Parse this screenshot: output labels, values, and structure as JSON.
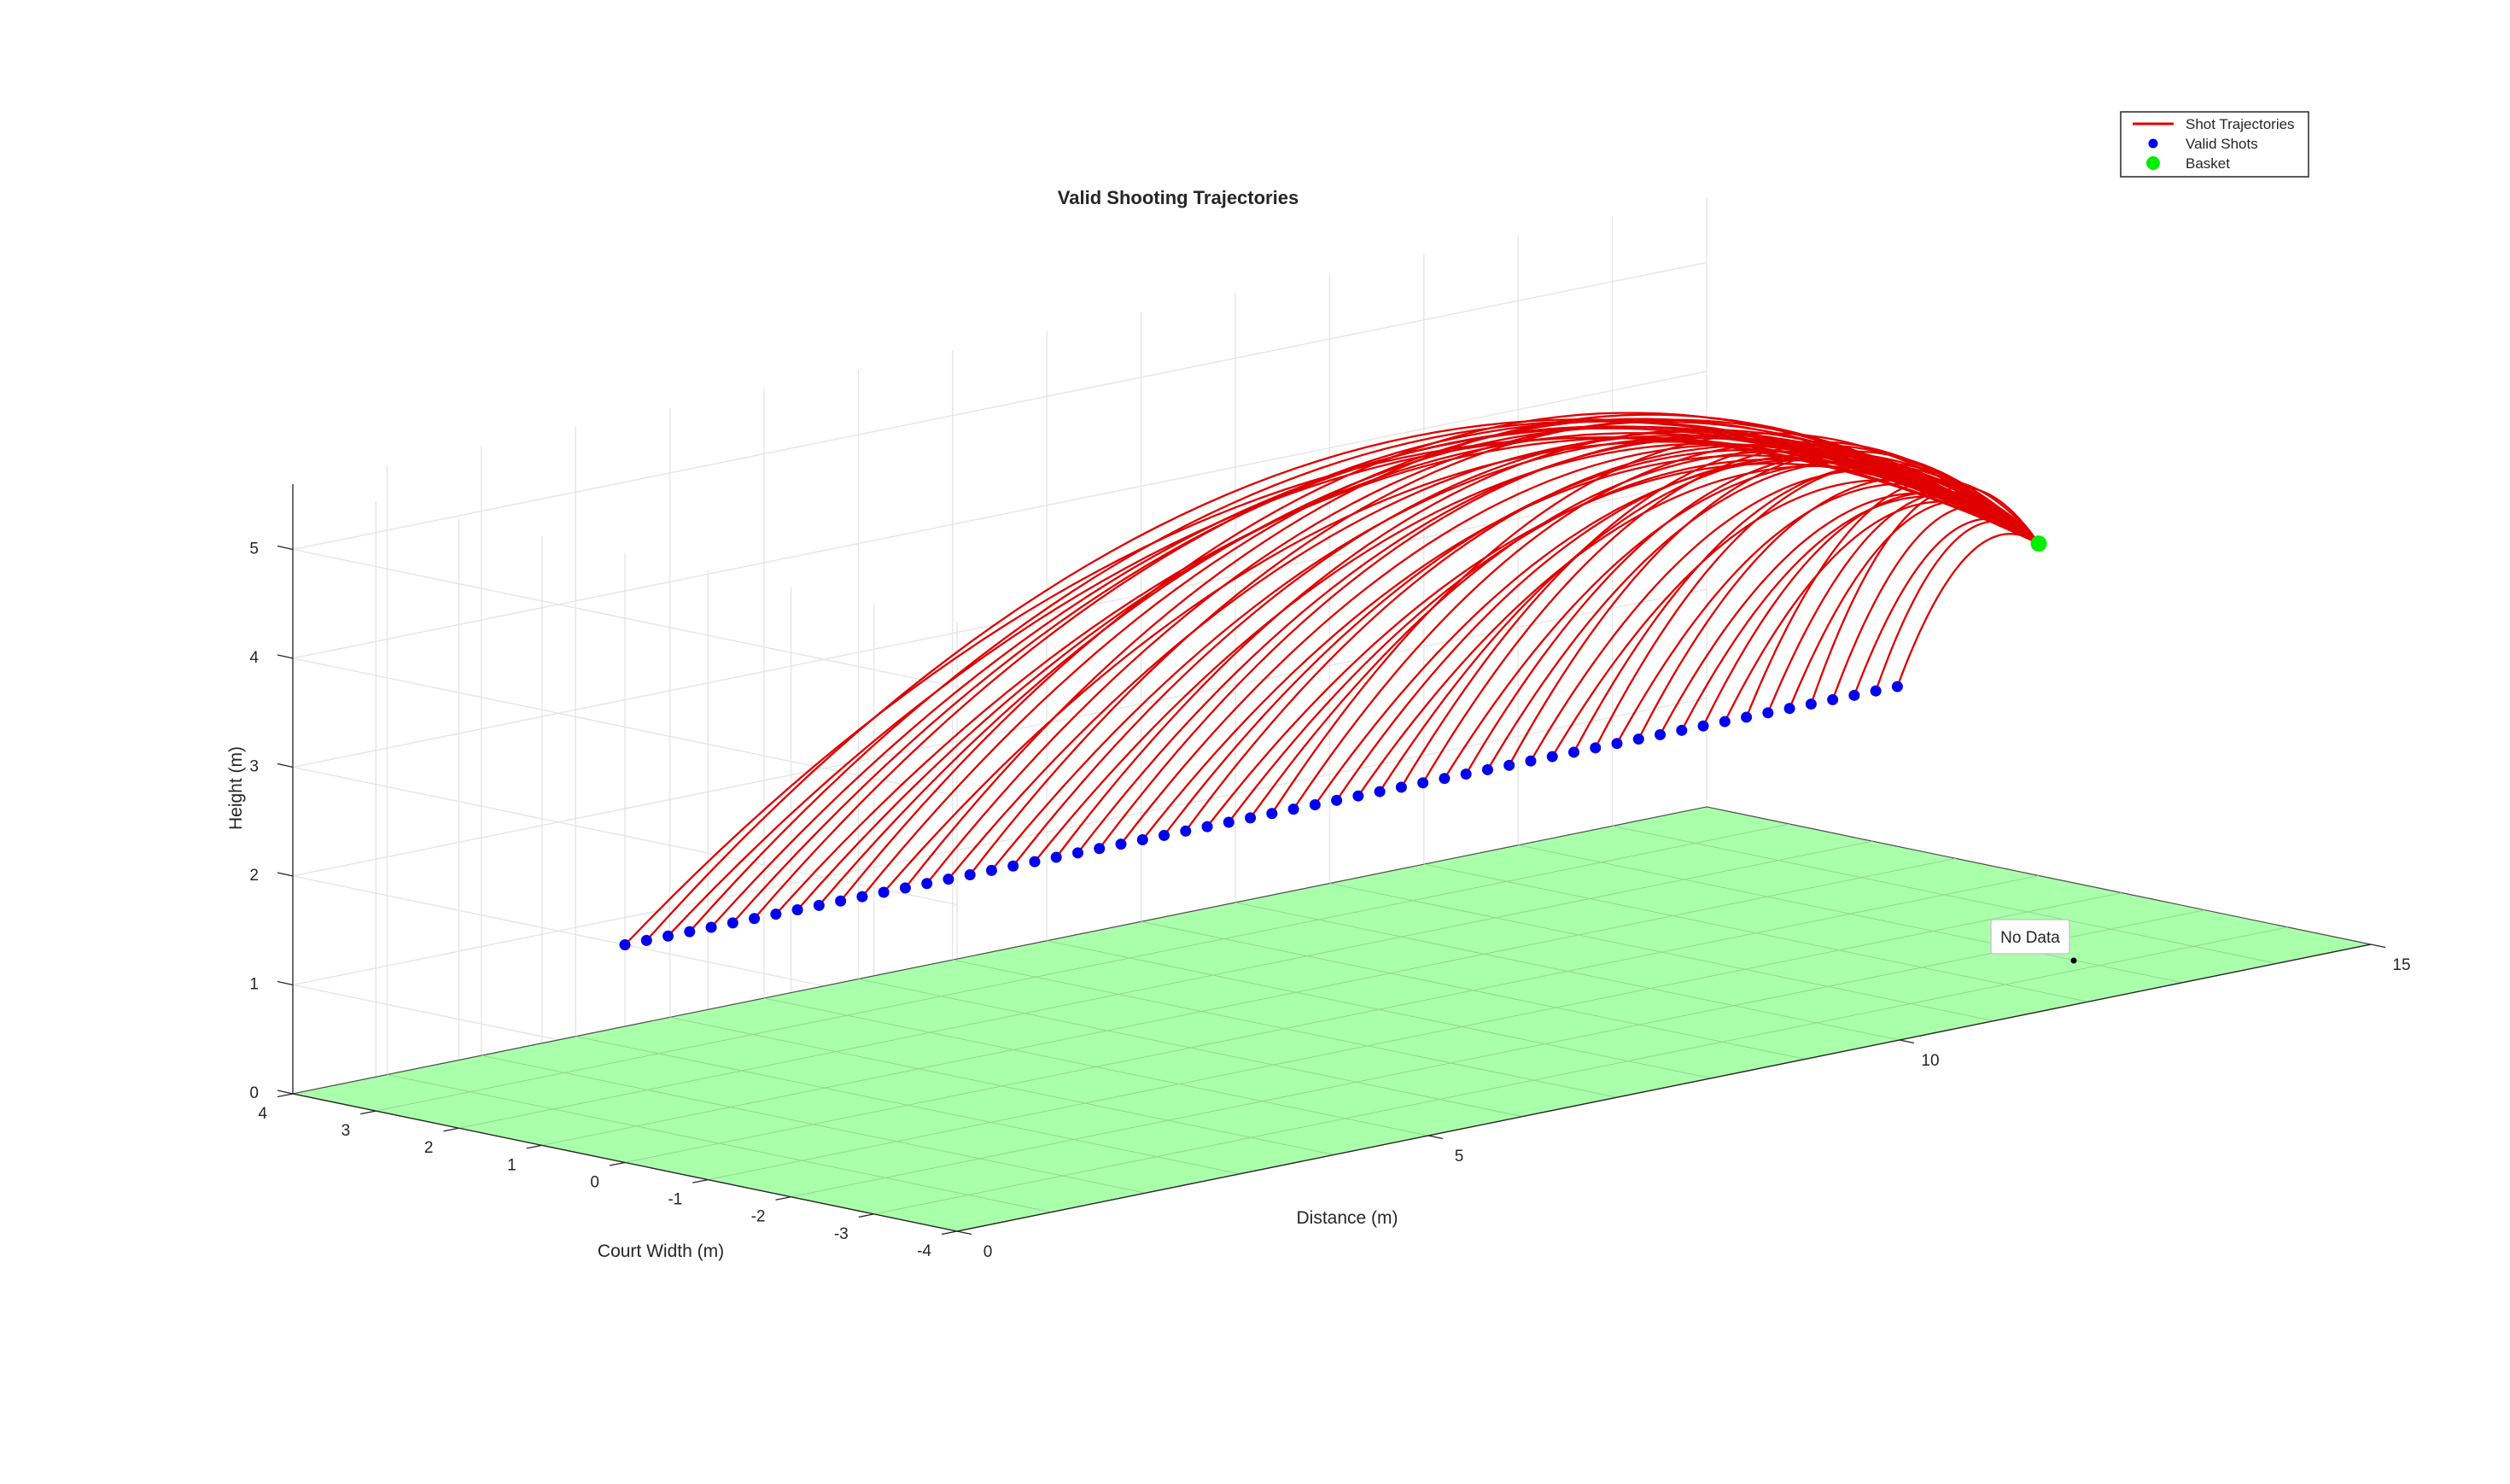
{
  "chart_data": {
    "type": "line-3d",
    "title": "Valid Shooting Trajectories",
    "xlabel": "Distance (m)",
    "ylabel": "Court Width (m)",
    "zlabel": "Height (m)",
    "xlim": [
      0,
      15
    ],
    "ylim": [
      -4,
      4
    ],
    "zlim": [
      0,
      5.6
    ],
    "xticks": [
      "0",
      "5",
      "10",
      "15"
    ],
    "yticks": [
      "4",
      "3",
      "2",
      "1",
      "0",
      "-1",
      "-2",
      "-3",
      "-4"
    ],
    "zticks": [
      "0",
      "1",
      "2",
      "3",
      "4",
      "5"
    ],
    "grid": true,
    "legend_position": "top-right",
    "legend": [
      {
        "label": "Shot Trajectories",
        "marker": "line",
        "color": "#e00000"
      },
      {
        "label": "Valid Shots",
        "marker": "dot",
        "color": "#0000ee"
      },
      {
        "label": "Basket",
        "marker": "big-dot",
        "color": "#00ee00"
      }
    ],
    "datatip": "No Data",
    "court": {
      "color": "#aaffaa",
      "x": [
        0,
        15
      ],
      "y": [
        -4,
        4
      ],
      "z": 0
    },
    "basket": {
      "x": 15,
      "y": 0,
      "z": 3.05
    },
    "shot_points": {
      "count": 60,
      "x_range": [
        0,
        13.5
      ],
      "y": 0,
      "z": 2.0
    },
    "apex_height_range": [
      3.3,
      5.2
    ],
    "colors": {
      "trajectory": "#e00000",
      "shots": "#0000ee",
      "basket": "#00ee00",
      "court": "#aaffaa"
    }
  }
}
